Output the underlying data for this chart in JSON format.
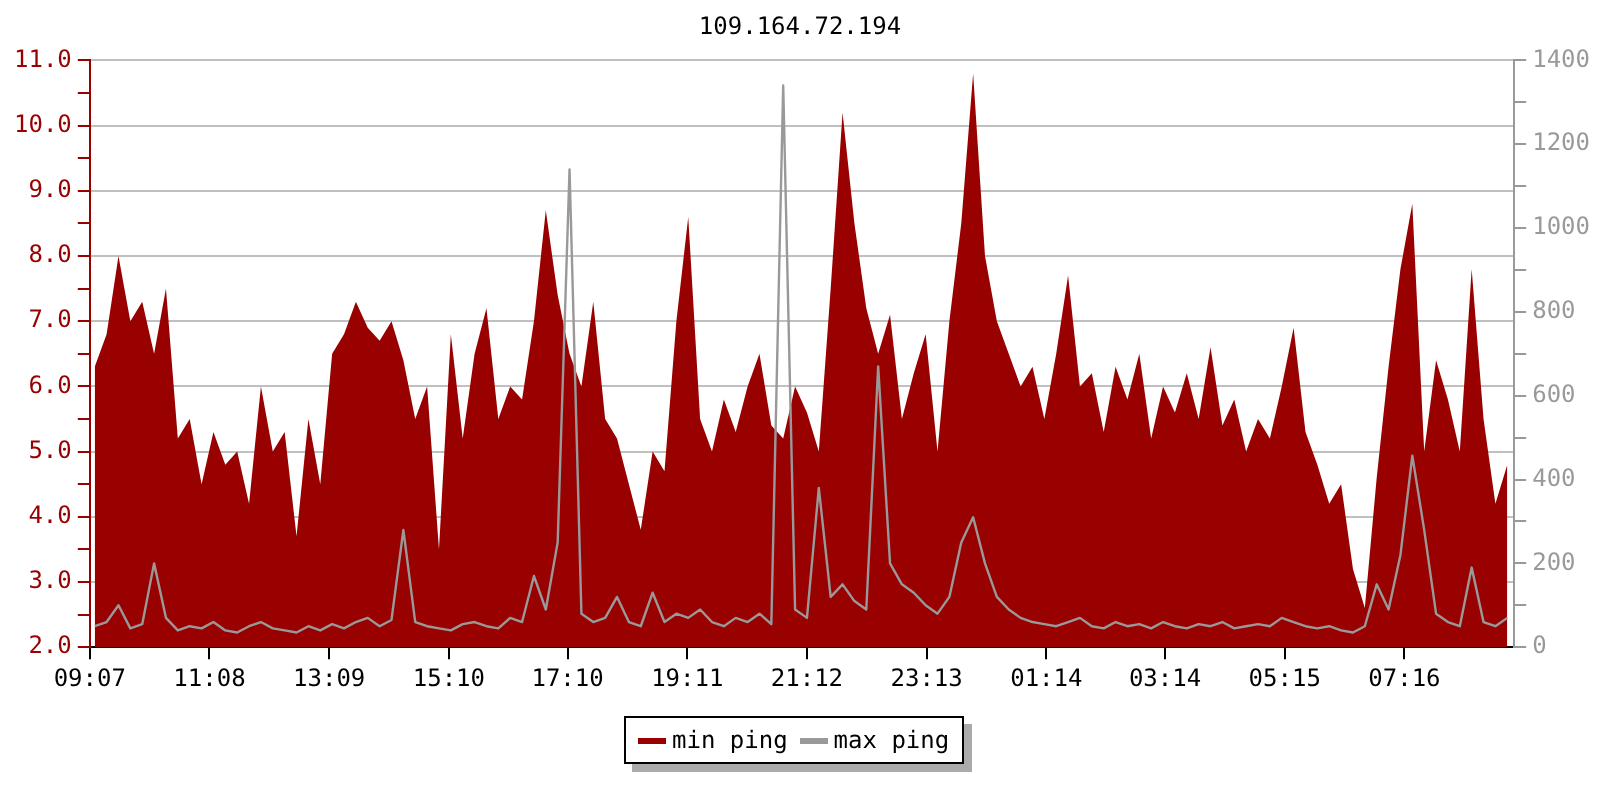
{
  "chart_data": {
    "type": "area",
    "title": "109.164.72.194",
    "x": [
      "--01-01T09:12",
      "--01-01T09:24",
      "--01-01T09:36",
      "--01-01T09:48",
      "--01-01T10:00",
      "--01-01T10:12",
      "--01-01T10:24",
      "--01-01T10:36",
      "--01-01T10:48",
      "--01-01T11:00",
      "--01-01T11:12",
      "--01-01T11:24",
      "--01-01T11:36",
      "--01-01T11:48",
      "--01-01T12:00",
      "--01-01T12:12",
      "--01-01T12:24",
      "--01-01T12:36",
      "--01-01T12:48",
      "--01-01T13:00",
      "--01-01T13:12",
      "--01-01T13:24",
      "--01-01T13:36",
      "--01-01T13:48",
      "--01-01T14:00",
      "--01-01T14:12",
      "--01-01T14:24",
      "--01-01T14:36",
      "--01-01T14:48",
      "--01-01T15:00",
      "--01-01T15:12",
      "--01-01T15:24",
      "--01-01T15:36",
      "--01-01T15:48",
      "--01-01T16:00",
      "--01-01T16:12",
      "--01-01T16:24",
      "--01-01T16:36",
      "--01-01T16:48",
      "--01-01T17:00",
      "--01-01T17:12",
      "--01-01T17:24",
      "--01-01T17:36",
      "--01-01T17:48",
      "--01-01T18:00",
      "--01-01T18:12",
      "--01-01T18:24",
      "--01-01T18:36",
      "--01-01T18:48",
      "--01-01T19:00",
      "--01-01T19:12",
      "--01-01T19:24",
      "--01-01T19:36",
      "--01-01T19:48",
      "--01-01T20:00",
      "--01-01T20:12",
      "--01-01T20:24",
      "--01-01T20:36",
      "--01-01T20:48",
      "--01-01T21:00",
      "--01-01T21:12",
      "--01-01T21:24",
      "--01-01T21:36",
      "--01-01T21:48",
      "--01-01T22:00",
      "--01-01T22:12",
      "--01-01T22:24",
      "--01-01T22:36",
      "--01-01T22:48",
      "--01-01T23:00",
      "--01-01T23:12",
      "--01-01T23:24",
      "--01-01T23:36",
      "--01-01T23:48",
      "--01-02T00:00",
      "--01-02T00:12",
      "--01-02T00:24",
      "--01-02T00:36",
      "--01-02T00:48",
      "--01-02T01:00",
      "--01-02T01:12",
      "--01-02T01:24",
      "--01-02T01:36",
      "--01-02T01:48",
      "--01-02T02:00",
      "--01-02T02:12",
      "--01-02T02:24",
      "--01-02T02:36",
      "--01-02T02:48",
      "--01-02T03:00",
      "--01-02T03:12",
      "--01-02T03:24",
      "--01-02T03:36",
      "--01-02T03:48",
      "--01-02T04:00",
      "--01-02T04:12",
      "--01-02T04:24",
      "--01-02T04:36",
      "--01-02T04:48",
      "--01-02T05:00",
      "--01-02T05:12",
      "--01-02T05:24",
      "--01-02T05:36",
      "--01-02T05:48",
      "--01-02T06:00",
      "--01-02T06:12",
      "--01-02T06:24",
      "--01-02T06:36",
      "--01-02T06:48",
      "--01-02T07:00",
      "--01-02T07:12",
      "--01-02T07:24",
      "--01-02T07:36",
      "--01-02T07:48",
      "--01-02T08:00",
      "--01-02T08:12",
      "--01-02T08:24",
      "--01-02T08:36",
      "--01-02T08:48",
      "--01-02T09:00"
    ],
    "series": [
      {
        "name": "min ping",
        "color": "#990000",
        "values": [
          6.3,
          6.8,
          8.0,
          7.0,
          7.3,
          6.5,
          7.5,
          5.2,
          5.5,
          4.5,
          5.3,
          4.8,
          5.0,
          4.2,
          6.0,
          5.0,
          5.3,
          3.7,
          5.5,
          4.5,
          6.5,
          6.8,
          7.3,
          6.9,
          6.7,
          7.0,
          6.4,
          5.5,
          6.0,
          3.5,
          6.8,
          5.2,
          6.5,
          7.2,
          5.5,
          6.0,
          5.8,
          7.0,
          8.7,
          7.4,
          6.5,
          6.0,
          7.3,
          5.5,
          5.2,
          4.5,
          3.8,
          5.0,
          4.7,
          7.0,
          8.6,
          5.5,
          5.0,
          5.8,
          5.3,
          6.0,
          6.5,
          5.4,
          5.2,
          6.0,
          5.6,
          5.0,
          7.5,
          10.2,
          8.5,
          7.2,
          6.5,
          7.1,
          5.5,
          6.2,
          6.8,
          5.0,
          7.0,
          8.5,
          10.8,
          8.0,
          7.0,
          6.5,
          6.0,
          6.3,
          5.5,
          6.5,
          7.7,
          6.0,
          6.2,
          5.3,
          6.3,
          5.8,
          6.5,
          5.2,
          6.0,
          5.6,
          6.2,
          5.5,
          6.6,
          5.4,
          5.8,
          5.0,
          5.5,
          5.2,
          6.0,
          6.9,
          5.3,
          4.8,
          4.2,
          4.5,
          3.2,
          2.6,
          4.6,
          6.3,
          7.8,
          8.8,
          5.0,
          6.4,
          5.8,
          5.0,
          7.8,
          5.5,
          4.2,
          4.8
        ]
      },
      {
        "name": "max ping",
        "color": "#999999",
        "type": "line",
        "axis": "y2",
        "values": [
          50,
          60,
          100,
          45,
          55,
          200,
          70,
          40,
          50,
          45,
          60,
          40,
          35,
          50,
          60,
          45,
          40,
          35,
          50,
          40,
          55,
          45,
          60,
          70,
          50,
          65,
          280,
          60,
          50,
          45,
          40,
          55,
          60,
          50,
          45,
          70,
          60,
          170,
          90,
          250,
          1140,
          80,
          60,
          70,
          120,
          60,
          50,
          130,
          60,
          80,
          70,
          90,
          60,
          50,
          70,
          60,
          80,
          55,
          1340,
          90,
          70,
          380,
          120,
          150,
          110,
          90,
          670,
          200,
          150,
          130,
          100,
          80,
          120,
          250,
          310,
          200,
          120,
          90,
          70,
          60,
          55,
          50,
          60,
          70,
          50,
          45,
          60,
          50,
          55,
          45,
          60,
          50,
          45,
          55,
          50,
          60,
          45,
          50,
          55,
          50,
          70,
          60,
          50,
          45,
          50,
          40,
          35,
          50,
          150,
          90,
          220,
          457,
          280,
          80,
          60,
          50,
          190,
          60,
          50,
          70
        ]
      }
    ],
    "xlim": [
      "--01-01T09:07",
      "--01-02T09:07"
    ],
    "xticks": [
      {
        "value": "--01-01T09:07",
        "label": "09:07"
      },
      {
        "value": "--01-01T11:08",
        "label": "11:08"
      },
      {
        "value": "--01-01T13:09",
        "label": "13:09"
      },
      {
        "value": "--01-01T15:10",
        "label": "15:10"
      },
      {
        "value": "--01-01T17:10",
        "label": "17:10"
      },
      {
        "value": "--01-01T19:11",
        "label": "19:11"
      },
      {
        "value": "--01-01T21:12",
        "label": "21:12"
      },
      {
        "value": "--01-01T23:13",
        "label": "23:13"
      },
      {
        "value": "--01-02T01:14",
        "label": "01:14"
      },
      {
        "value": "--01-02T03:14",
        "label": "03:14"
      },
      {
        "value": "--01-02T05:15",
        "label": "05:15"
      },
      {
        "value": "--01-02T07:16",
        "label": "07:16"
      }
    ],
    "ylim": [
      2,
      11
    ],
    "yticks": [
      {
        "value": 2,
        "label": "2.0"
      },
      {
        "value": 2.5,
        "label": null
      },
      {
        "value": 3,
        "label": "3.0"
      },
      {
        "value": 3.5,
        "label": null
      },
      {
        "value": 4,
        "label": "4.0"
      },
      {
        "value": 4.5,
        "label": null
      },
      {
        "value": 5,
        "label": "5.0"
      },
      {
        "value": 5.5,
        "label": null
      },
      {
        "value": 6,
        "label": "6.0"
      },
      {
        "value": 6.5,
        "label": null
      },
      {
        "value": 7,
        "label": "7.0"
      },
      {
        "value": 7.5,
        "label": null
      },
      {
        "value": 8,
        "label": "8.0"
      },
      {
        "value": 8.5,
        "label": null
      },
      {
        "value": 9,
        "label": "9.0"
      },
      {
        "value": 9.5,
        "label": null
      },
      {
        "value": 10,
        "label": "10.0"
      },
      {
        "value": 10.5,
        "label": null
      },
      {
        "value": 11,
        "label": "11.0"
      }
    ],
    "y2lim": [
      0,
      1400
    ],
    "y2ticks": [
      0,
      {
        "value": 100,
        "label": null
      },
      200,
      {
        "value": 300,
        "label": null
      },
      400,
      {
        "value": 500,
        "label": null
      },
      600,
      {
        "value": 700,
        "label": null
      },
      800,
      {
        "value": 900,
        "label": null
      },
      1000,
      {
        "value": 1100,
        "label": null
      },
      1200,
      {
        "value": 1300,
        "label": null
      },
      1400
    ],
    "grid": "y",
    "legend": "bottom",
    "marker": "none"
  }
}
